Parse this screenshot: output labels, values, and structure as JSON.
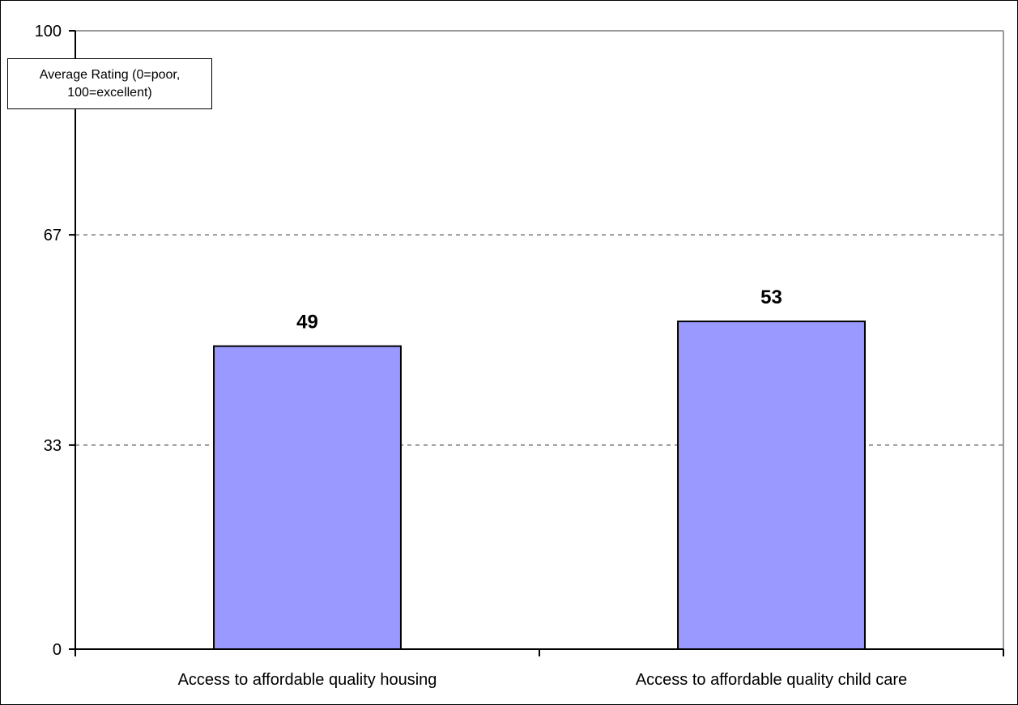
{
  "chart_data": {
    "type": "bar",
    "categories": [
      "Access to affordable quality housing",
      "Access to affordable quality child care"
    ],
    "values": [
      49,
      53
    ],
    "data_labels": [
      "49",
      "53"
    ],
    "title": "",
    "xlabel": "",
    "ylabel": "Average Rating (0=poor, 100=excellent)",
    "ylim": [
      0,
      100
    ],
    "yticks": [
      0,
      33,
      67,
      100
    ],
    "ytick_labels": [
      "0",
      "33",
      "67",
      "100"
    ],
    "grid": "dashed horizontal at 33 and 67",
    "legend": "none",
    "bar_color": "#9999ff",
    "bar_edge_color": "#000000",
    "grid_color": "#999999"
  }
}
